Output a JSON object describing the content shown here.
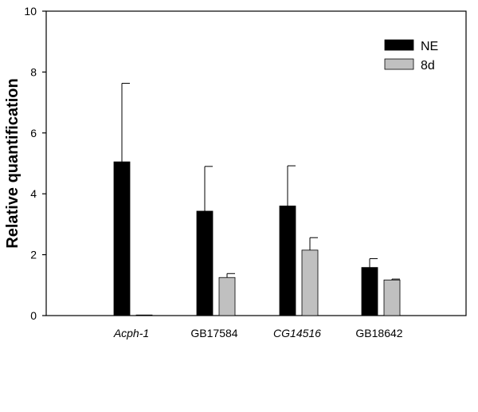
{
  "chart_data": {
    "type": "bar",
    "title": "",
    "xlabel": "",
    "ylabel": "Relative quantification",
    "ylim": [
      0,
      10
    ],
    "yticks": [
      0,
      2,
      4,
      6,
      8,
      10
    ],
    "categories": [
      "Acph-1",
      "GB17584",
      "CG14516",
      "GB18642"
    ],
    "italic_categories": [
      "Acph-1",
      "CG14516"
    ],
    "series": [
      {
        "name": "NE",
        "color": "#000000",
        "values": [
          5.05,
          3.43,
          3.6,
          1.58
        ],
        "errors": [
          2.58,
          1.47,
          1.32,
          0.29
        ]
      },
      {
        "name": "8d",
        "color": "#c0c0c0",
        "values": [
          0.02,
          1.25,
          2.15,
          1.17
        ],
        "errors": [
          0.0,
          0.13,
          0.41,
          0.03
        ]
      }
    ],
    "legend_position": "top-right",
    "grid": false
  }
}
